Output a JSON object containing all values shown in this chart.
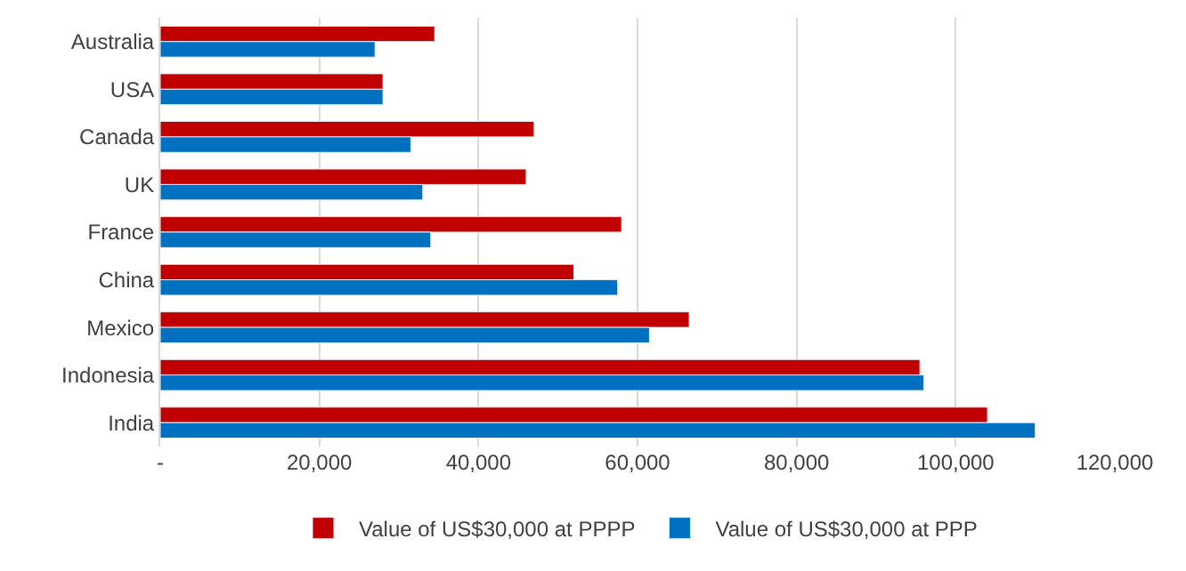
{
  "chart_data": {
    "type": "bar",
    "orientation": "horizontal",
    "categories": [
      "Australia",
      "USA",
      "Canada",
      "UK",
      "France",
      "China",
      "Mexico",
      "Indonesia",
      "India"
    ],
    "series": [
      {
        "name": "Value of US$30,000 at PPPP",
        "color": "#c00000",
        "values": [
          34500,
          28000,
          47000,
          46000,
          58000,
          52000,
          66500,
          95500,
          104000
        ]
      },
      {
        "name": "Value of US$30,000 at PPP",
        "color": "#0070c0",
        "values": [
          27000,
          28000,
          31500,
          33000,
          34000,
          57500,
          61500,
          96000,
          110000
        ]
      }
    ],
    "xlim": [
      0,
      120000
    ],
    "xticks": [
      {
        "value": 0,
        "label": "-"
      },
      {
        "value": 20000,
        "label": "20,000"
      },
      {
        "value": 40000,
        "label": "40,000"
      },
      {
        "value": 60000,
        "label": "60,000"
      },
      {
        "value": 80000,
        "label": "80,000"
      },
      {
        "value": 100000,
        "label": "100,000"
      },
      {
        "value": 120000,
        "label": "120,000"
      }
    ],
    "grid": "x",
    "legend": "bottom"
  }
}
